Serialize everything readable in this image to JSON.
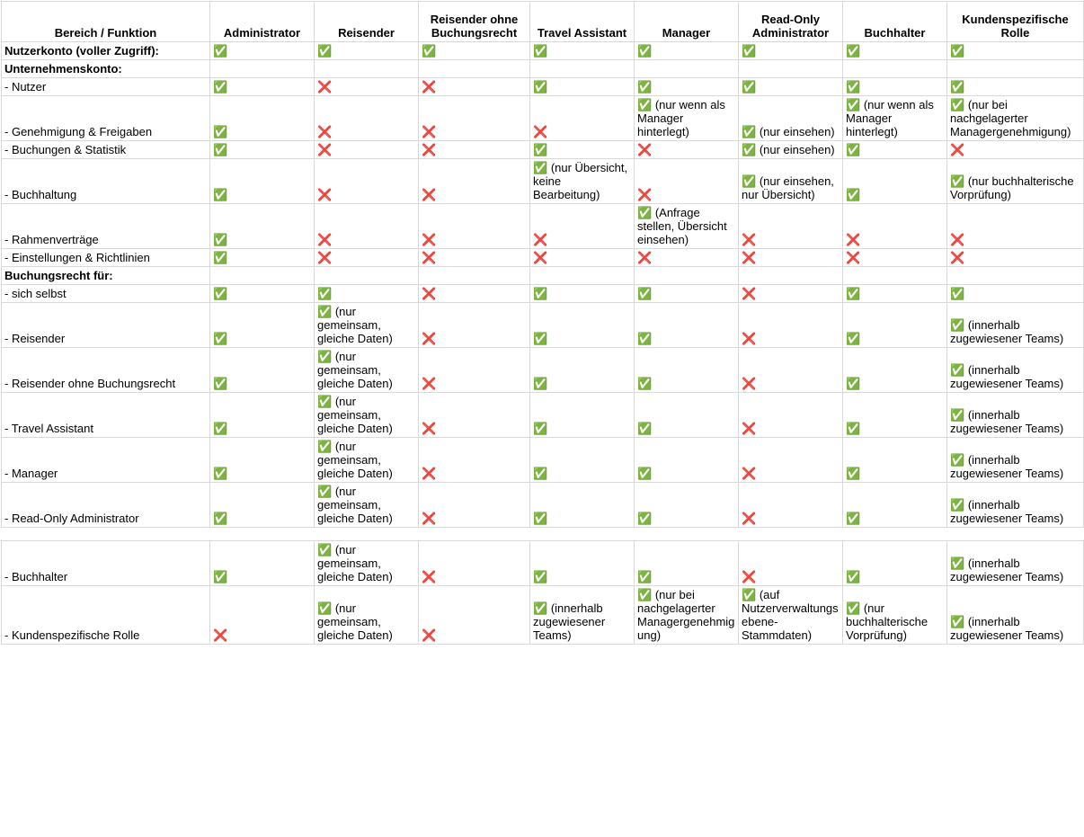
{
  "table": {
    "header": [
      "Bereich / Funktion",
      "Administrator",
      "Reisender",
      "Reisender ohne Buchungsrecht",
      "Travel Assistant",
      "Manager",
      "Read-Only Administrator",
      "Buchhalter",
      "Kundenspezifische Rolle"
    ],
    "rows": [
      {
        "label": "Nutzerkonto (voller Zugriff):",
        "bold": true,
        "cells": [
          {
            "icon": "✅"
          },
          {
            "icon": "✅"
          },
          {
            "icon": "✅"
          },
          {
            "icon": "✅"
          },
          {
            "icon": "✅"
          },
          {
            "icon": "✅"
          },
          {
            "icon": "✅"
          },
          {
            "icon": "✅"
          }
        ]
      },
      {
        "label": "Unternehmenskonto:",
        "bold": true
      },
      {
        "label": "- Nutzer",
        "cells": [
          {
            "icon": "✅"
          },
          {
            "icon": "❌"
          },
          {
            "icon": "❌"
          },
          {
            "icon": "✅"
          },
          {
            "icon": "✅"
          },
          {
            "icon": "✅"
          },
          {
            "icon": "✅"
          },
          {
            "icon": "✅"
          }
        ]
      },
      {
        "label": "- Genehmigung & Freigaben",
        "cells": [
          {
            "icon": "✅"
          },
          {
            "icon": "❌"
          },
          {
            "icon": "❌"
          },
          {
            "icon": "❌"
          },
          {
            "icon": "✅",
            "note": "(nur wenn als Manager hinterlegt)"
          },
          {
            "icon": "✅",
            "note": "(nur einsehen)"
          },
          {
            "icon": "✅",
            "note": "(nur wenn als Manager hinterlegt)"
          },
          {
            "icon": "✅",
            "note": "(nur bei nachgelagerter Managergenehmigung)"
          }
        ]
      },
      {
        "label": "- Buchungen & Statistik",
        "cells": [
          {
            "icon": "✅"
          },
          {
            "icon": "❌"
          },
          {
            "icon": "❌"
          },
          {
            "icon": "✅"
          },
          {
            "icon": "❌"
          },
          {
            "icon": "✅",
            "note": "(nur einsehen)"
          },
          {
            "icon": "✅"
          },
          {
            "icon": "❌"
          }
        ]
      },
      {
        "label": "- Buchhaltung",
        "cells": [
          {
            "icon": "✅"
          },
          {
            "icon": "❌"
          },
          {
            "icon": "❌"
          },
          {
            "icon": "✅",
            "note": "(nur Übersicht, keine Bearbeitung)"
          },
          {
            "icon": "❌"
          },
          {
            "icon": "✅",
            "note": "(nur einsehen, nur Übersicht)"
          },
          {
            "icon": "✅"
          },
          {
            "icon": "✅",
            "note": "(nur buchhalterische Vorprüfung)"
          }
        ]
      },
      {
        "label": "- Rahmenverträge",
        "cells": [
          {
            "icon": "✅"
          },
          {
            "icon": "❌"
          },
          {
            "icon": "❌"
          },
          {
            "icon": "❌"
          },
          {
            "icon": "✅",
            "note": "(Anfrage stellen, Übersicht einsehen)"
          },
          {
            "icon": "❌"
          },
          {
            "icon": "❌"
          },
          {
            "icon": "❌"
          }
        ]
      },
      {
        "label": "- Einstellungen & Richtlinien",
        "cells": [
          {
            "icon": "✅"
          },
          {
            "icon": "❌"
          },
          {
            "icon": "❌"
          },
          {
            "icon": "❌"
          },
          {
            "icon": "❌"
          },
          {
            "icon": "❌"
          },
          {
            "icon": "❌"
          },
          {
            "icon": "❌"
          }
        ]
      },
      {
        "label": "Buchungsrecht für:",
        "bold": true
      },
      {
        "label": "- sich selbst",
        "cells": [
          {
            "icon": "✅"
          },
          {
            "icon": "✅"
          },
          {
            "icon": "❌"
          },
          {
            "icon": "✅"
          },
          {
            "icon": "✅"
          },
          {
            "icon": "❌"
          },
          {
            "icon": "✅"
          },
          {
            "icon": "✅"
          }
        ]
      },
      {
        "label": "- Reisender",
        "cells": [
          {
            "icon": "✅"
          },
          {
            "icon": "✅",
            "note": "(nur gemeinsam, gleiche Daten)"
          },
          {
            "icon": "❌"
          },
          {
            "icon": "✅"
          },
          {
            "icon": "✅"
          },
          {
            "icon": "❌"
          },
          {
            "icon": "✅"
          },
          {
            "icon": "✅",
            "note": "(innerhalb zugewiesener Teams)"
          }
        ]
      },
      {
        "label": "- Reisender ohne Buchungsrecht",
        "cells": [
          {
            "icon": "✅"
          },
          {
            "icon": "✅",
            "note": "(nur gemeinsam, gleiche Daten)"
          },
          {
            "icon": "❌"
          },
          {
            "icon": "✅"
          },
          {
            "icon": "✅"
          },
          {
            "icon": "❌"
          },
          {
            "icon": "✅"
          },
          {
            "icon": "✅",
            "note": "(innerhalb zugewiesener Teams)"
          }
        ]
      },
      {
        "label": "- Travel Assistant",
        "cells": [
          {
            "icon": "✅"
          },
          {
            "icon": "✅",
            "note": "(nur gemeinsam, gleiche Daten)"
          },
          {
            "icon": "❌"
          },
          {
            "icon": "✅"
          },
          {
            "icon": "✅"
          },
          {
            "icon": "❌"
          },
          {
            "icon": "✅"
          },
          {
            "icon": "✅",
            "note": "(innerhalb zugewiesener Teams)"
          }
        ]
      },
      {
        "label": "- Manager",
        "cells": [
          {
            "icon": "✅"
          },
          {
            "icon": "✅",
            "note": "(nur gemeinsam, gleiche Daten)"
          },
          {
            "icon": "❌"
          },
          {
            "icon": "✅"
          },
          {
            "icon": "✅"
          },
          {
            "icon": "❌"
          },
          {
            "icon": "✅"
          },
          {
            "icon": "✅",
            "note": "(innerhalb zugewiesener Teams)"
          }
        ]
      },
      {
        "label": "- Read-Only Administrator",
        "cells": [
          {
            "icon": "✅"
          },
          {
            "icon": "✅",
            "note": "(nur gemeinsam, gleiche Daten)"
          },
          {
            "icon": "❌"
          },
          {
            "icon": "✅"
          },
          {
            "icon": "✅"
          },
          {
            "icon": "❌"
          },
          {
            "icon": "✅"
          },
          {
            "icon": "✅",
            "note": "(innerhalb zugewiesener Teams)"
          }
        ]
      },
      {
        "label": "- Buchhalter",
        "gap_before": true,
        "cells": [
          {
            "icon": "✅"
          },
          {
            "icon": "✅",
            "note": "(nur gemeinsam, gleiche Daten)"
          },
          {
            "icon": "❌"
          },
          {
            "icon": "✅"
          },
          {
            "icon": "✅"
          },
          {
            "icon": "❌"
          },
          {
            "icon": "✅"
          },
          {
            "icon": "✅",
            "note": "(innerhalb zugewiesener Teams)"
          }
        ]
      },
      {
        "label": "- Kundenspezifische Rolle",
        "cells": [
          {
            "icon": "❌"
          },
          {
            "icon": "✅",
            "note": "(nur gemeinsam, gleiche Daten)"
          },
          {
            "icon": "❌"
          },
          {
            "icon": "✅",
            "note": "(innerhalb zugewiesener Teams)"
          },
          {
            "icon": "✅",
            "note": "(nur bei nachgelagerter Managergenehmigung)"
          },
          {
            "icon": "✅",
            "note": "(auf Nutzerverwaltungsebene-Stammdaten)"
          },
          {
            "icon": "✅",
            "note": "(nur buchhalterische Vorprüfung)"
          },
          {
            "icon": "✅",
            "note": "(innerhalb zugewiesener Teams)"
          }
        ]
      }
    ]
  }
}
